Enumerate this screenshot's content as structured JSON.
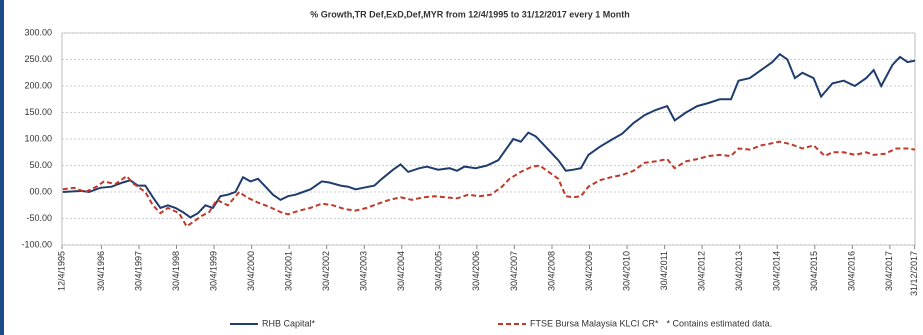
{
  "chart_data": {
    "type": "line",
    "title": "% Growth,TR Def,ExD,Def,MYR from 12/4/1995 to 31/12/2017 every 1 Month",
    "xlim": [
      1995.28,
      2018.0
    ],
    "xticks": [
      {
        "value": 1995.28,
        "label": "12/4/1995"
      },
      {
        "value": 1996.33,
        "label": "30/4/1996"
      },
      {
        "value": 1997.33,
        "label": "30/4/1997"
      },
      {
        "value": 1998.33,
        "label": "30/4/1998"
      },
      {
        "value": 1999.33,
        "label": "30/4/1999"
      },
      {
        "value": 2000.33,
        "label": "30/4/2000"
      },
      {
        "value": 2001.33,
        "label": "30/4/2001"
      },
      {
        "value": 2002.33,
        "label": "30/4/2002"
      },
      {
        "value": 2003.33,
        "label": "30/4/2003"
      },
      {
        "value": 2004.33,
        "label": "30/4/2004"
      },
      {
        "value": 2005.33,
        "label": "30/4/2005"
      },
      {
        "value": 2006.33,
        "label": "30/4/2006"
      },
      {
        "value": 2007.33,
        "label": "30/4/2007"
      },
      {
        "value": 2008.33,
        "label": "30/4/2008"
      },
      {
        "value": 2009.33,
        "label": "30/4/2009"
      },
      {
        "value": 2010.33,
        "label": "30/4/2010"
      },
      {
        "value": 2011.33,
        "label": "30/4/2011"
      },
      {
        "value": 2012.33,
        "label": "30/4/2012"
      },
      {
        "value": 2013.33,
        "label": "30/4/2013"
      },
      {
        "value": 2014.33,
        "label": "30/4/2014"
      },
      {
        "value": 2015.33,
        "label": "30/4/2015"
      },
      {
        "value": 2016.33,
        "label": "30/4/2016"
      },
      {
        "value": 2017.33,
        "label": "30/4/2017"
      },
      {
        "value": 2017.99,
        "label": "31/12/2017"
      }
    ],
    "ylim": [
      -100,
      300
    ],
    "yticks": [
      {
        "value": -100,
        "label": "-100.00"
      },
      {
        "value": -50,
        "label": "-50.00"
      },
      {
        "value": 0,
        "label": "00.00"
      },
      {
        "value": 50,
        "label": "50.00"
      },
      {
        "value": 100,
        "label": "100.00"
      },
      {
        "value": 150,
        "label": "150.00"
      },
      {
        "value": 200,
        "label": "200.00"
      },
      {
        "value": 250,
        "label": "250.00"
      },
      {
        "value": 300,
        "label": "300.00"
      }
    ],
    "grid": true,
    "series": [
      {
        "name": "RHB Capital*",
        "color": "#1f3d6e",
        "dash": false,
        "x": [
          1995.3,
          1995.8,
          1996.0,
          1996.3,
          1996.6,
          1996.9,
          1997.1,
          1997.3,
          1997.5,
          1997.7,
          1997.9,
          1998.1,
          1998.3,
          1998.5,
          1998.7,
          1998.9,
          1999.1,
          1999.3,
          1999.5,
          1999.7,
          1999.9,
          2000.1,
          2000.3,
          2000.5,
          2000.7,
          2000.9,
          2001.1,
          2001.3,
          2001.5,
          2001.7,
          2001.9,
          2002.2,
          2002.4,
          2002.7,
          2002.9,
          2003.1,
          2003.3,
          2003.6,
          2003.8,
          2004.1,
          2004.3,
          2004.5,
          2004.8,
          2005.0,
          2005.3,
          2005.6,
          2005.8,
          2006.0,
          2006.3,
          2006.6,
          2006.9,
          2007.1,
          2007.3,
          2007.5,
          2007.7,
          2007.9,
          2008.1,
          2008.3,
          2008.5,
          2008.7,
          2008.9,
          2009.1,
          2009.3,
          2009.6,
          2009.9,
          2010.2,
          2010.5,
          2010.8,
          2011.1,
          2011.4,
          2011.6,
          2011.9,
          2012.2,
          2012.5,
          2012.8,
          2013.1,
          2013.3,
          2013.6,
          2013.9,
          2014.2,
          2014.4,
          2014.6,
          2014.8,
          2015.0,
          2015.3,
          2015.5,
          2015.8,
          2016.1,
          2016.4,
          2016.7,
          2016.9,
          2017.1,
          2017.4,
          2017.6,
          2017.8,
          2018.0
        ],
        "values": [
          0,
          2,
          0,
          8,
          10,
          18,
          22,
          12,
          12,
          -10,
          -30,
          -25,
          -30,
          -38,
          -48,
          -40,
          -25,
          -30,
          -8,
          -5,
          0,
          28,
          20,
          25,
          10,
          -5,
          -15,
          -8,
          -5,
          0,
          5,
          20,
          18,
          12,
          10,
          5,
          8,
          12,
          25,
          42,
          52,
          38,
          45,
          48,
          42,
          45,
          40,
          48,
          45,
          50,
          60,
          80,
          100,
          95,
          112,
          105,
          90,
          75,
          60,
          40,
          42,
          45,
          70,
          85,
          98,
          110,
          130,
          145,
          155,
          162,
          135,
          150,
          162,
          168,
          175,
          175,
          210,
          215,
          230,
          245,
          260,
          250,
          215,
          225,
          215,
          180,
          205,
          210,
          200,
          215,
          230,
          200,
          240,
          255,
          245,
          248
        ]
      },
      {
        "name": "FTSE Bursa Malaysia KLCI CR*",
        "color": "#c0392b",
        "dash": true,
        "x": [
          1995.3,
          1995.6,
          1995.9,
          1996.2,
          1996.4,
          1996.7,
          1997.0,
          1997.2,
          1997.5,
          1997.7,
          1997.9,
          1998.1,
          1998.4,
          1998.6,
          1998.8,
          1999.0,
          1999.2,
          1999.4,
          1999.7,
          2000.0,
          2000.2,
          2000.5,
          2000.8,
          2001.1,
          2001.3,
          2001.6,
          2001.9,
          2002.2,
          2002.5,
          2002.8,
          2003.1,
          2003.4,
          2003.7,
          2004.0,
          2004.3,
          2004.6,
          2004.9,
          2005.2,
          2005.5,
          2005.8,
          2006.1,
          2006.4,
          2006.7,
          2007.0,
          2007.2,
          2007.5,
          2007.8,
          2008.0,
          2008.3,
          2008.5,
          2008.7,
          2008.9,
          2009.1,
          2009.3,
          2009.6,
          2009.9,
          2010.2,
          2010.5,
          2010.8,
          2011.1,
          2011.4,
          2011.6,
          2011.9,
          2012.2,
          2012.5,
          2012.8,
          2013.1,
          2013.3,
          2013.6,
          2013.9,
          2014.2,
          2014.4,
          2014.7,
          2015.0,
          2015.3,
          2015.6,
          2015.8,
          2016.1,
          2016.4,
          2016.7,
          2016.9,
          2017.2,
          2017.5,
          2017.8,
          2018.0
        ],
        "values": [
          5,
          8,
          0,
          10,
          20,
          15,
          30,
          15,
          0,
          -25,
          -40,
          -30,
          -40,
          -65,
          -55,
          -45,
          -38,
          -15,
          -25,
          0,
          -10,
          -20,
          -28,
          -38,
          -42,
          -35,
          -30,
          -22,
          -25,
          -32,
          -35,
          -30,
          -22,
          -15,
          -10,
          -15,
          -10,
          -8,
          -10,
          -12,
          -5,
          -8,
          -5,
          10,
          25,
          38,
          48,
          50,
          35,
          25,
          -8,
          -10,
          -8,
          10,
          22,
          28,
          32,
          40,
          55,
          58,
          62,
          45,
          58,
          62,
          68,
          70,
          68,
          82,
          80,
          88,
          92,
          95,
          90,
          82,
          88,
          68,
          75,
          75,
          70,
          75,
          70,
          72,
          82,
          82,
          80
        ]
      }
    ],
    "footnote": "* Contains estimated data."
  }
}
